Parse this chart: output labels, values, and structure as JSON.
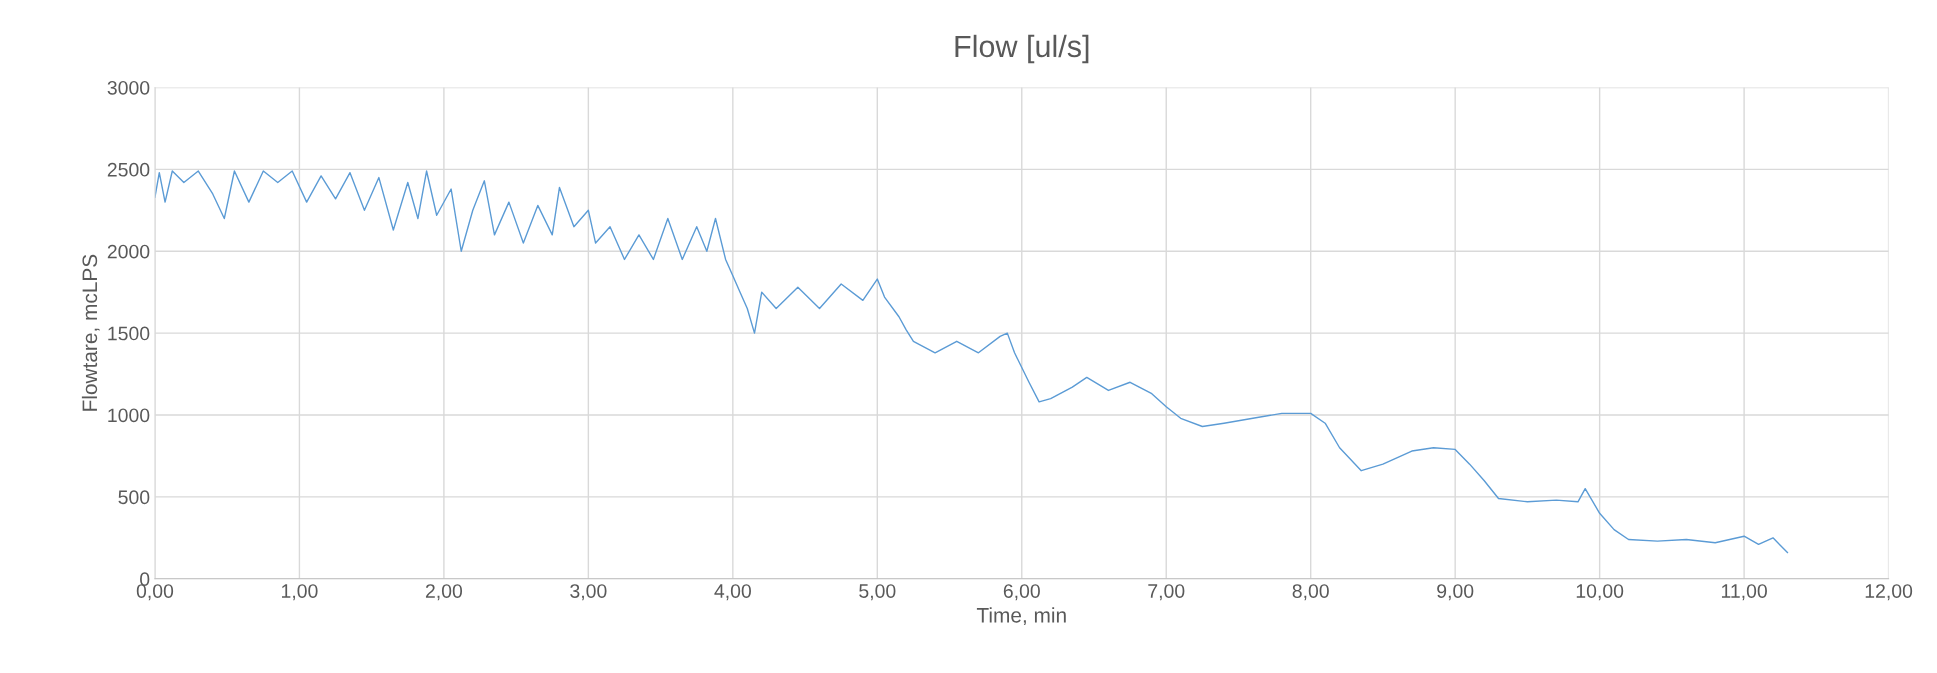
{
  "chart_data": {
    "type": "line",
    "title": "Flow [ul/s]",
    "xlabel": "Time, min",
    "ylabel": "Flowtare, mcLPS",
    "x": [
      0.0,
      0.03,
      0.07,
      0.12,
      0.2,
      0.3,
      0.4,
      0.48,
      0.55,
      0.65,
      0.75,
      0.85,
      0.95,
      1.05,
      1.15,
      1.25,
      1.35,
      1.45,
      1.55,
      1.65,
      1.75,
      1.82,
      1.88,
      1.95,
      2.05,
      2.12,
      2.2,
      2.28,
      2.35,
      2.45,
      2.55,
      2.65,
      2.75,
      2.8,
      2.9,
      3.0,
      3.05,
      3.15,
      3.25,
      3.35,
      3.45,
      3.55,
      3.65,
      3.75,
      3.82,
      3.88,
      3.95,
      4.0,
      4.05,
      4.1,
      4.15,
      4.2,
      4.3,
      4.45,
      4.6,
      4.75,
      4.9,
      5.0,
      5.05,
      5.15,
      5.2,
      5.25,
      5.4,
      5.55,
      5.7,
      5.85,
      5.9,
      5.95,
      6.05,
      6.12,
      6.2,
      6.35,
      6.45,
      6.6,
      6.75,
      6.9,
      7.0,
      7.1,
      7.25,
      7.4,
      7.6,
      7.8,
      8.0,
      8.1,
      8.2,
      8.35,
      8.5,
      8.7,
      8.85,
      9.0,
      9.1,
      9.2,
      9.3,
      9.5,
      9.7,
      9.85,
      9.9,
      10.0,
      10.1,
      10.2,
      10.4,
      10.6,
      10.8,
      11.0,
      11.1,
      11.2,
      11.3
    ],
    "series": [
      {
        "color": "#5b9bd5",
        "values": [
          2330,
          2480,
          2300,
          2490,
          2420,
          2490,
          2350,
          2200,
          2490,
          2300,
          2490,
          2420,
          2490,
          2300,
          2460,
          2320,
          2480,
          2250,
          2450,
          2130,
          2420,
          2200,
          2490,
          2220,
          2380,
          2000,
          2250,
          2430,
          2100,
          2300,
          2050,
          2280,
          2100,
          2390,
          2150,
          2250,
          2050,
          2150,
          1950,
          2100,
          1950,
          2200,
          1950,
          2150,
          2000,
          2200,
          1950,
          1850,
          1750,
          1650,
          1500,
          1750,
          1650,
          1780,
          1650,
          1800,
          1700,
          1830,
          1720,
          1600,
          1520,
          1450,
          1380,
          1450,
          1380,
          1480,
          1500,
          1380,
          1200,
          1080,
          1100,
          1170,
          1230,
          1150,
          1200,
          1130,
          1050,
          980,
          930,
          950,
          980,
          1010,
          1010,
          950,
          800,
          660,
          700,
          780,
          800,
          790,
          700,
          600,
          490,
          470,
          480,
          470,
          550,
          400,
          300,
          240,
          230,
          240,
          220,
          260,
          210,
          250,
          160
        ]
      }
    ],
    "xlim": [
      0,
      12
    ],
    "xticks": [
      {
        "value": 0,
        "label": "0,00"
      },
      {
        "value": 1,
        "label": "1,00"
      },
      {
        "value": 2,
        "label": "2,00"
      },
      {
        "value": 3,
        "label": "3,00"
      },
      {
        "value": 4,
        "label": "4,00"
      },
      {
        "value": 5,
        "label": "5,00"
      },
      {
        "value": 6,
        "label": "6,00"
      },
      {
        "value": 7,
        "label": "7,00"
      },
      {
        "value": 8,
        "label": "8,00"
      },
      {
        "value": 9,
        "label": "9,00"
      },
      {
        "value": 10,
        "label": "10,00"
      },
      {
        "value": 11,
        "label": "11,00"
      },
      {
        "value": 12,
        "label": "12,00"
      }
    ],
    "ylim": [
      0,
      3000
    ],
    "yticks": [
      0,
      500,
      1000,
      1500,
      2000,
      2500,
      3000
    ],
    "grid": true,
    "marker": "none",
    "line_style": "solid"
  }
}
